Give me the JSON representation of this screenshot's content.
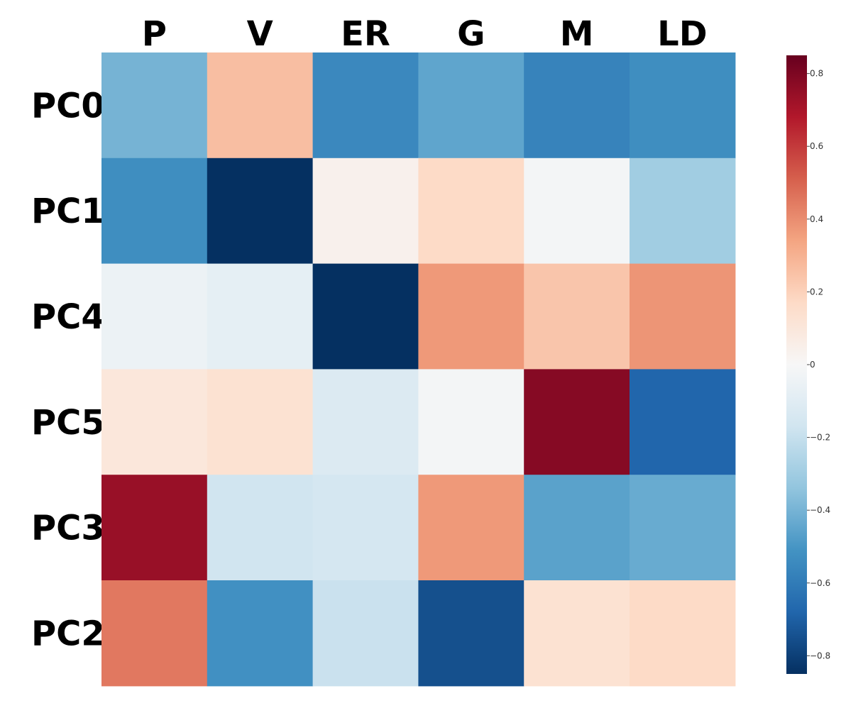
{
  "chart_data": {
    "type": "heatmap",
    "columns": [
      "P",
      "V",
      "ER",
      "G",
      "M",
      "LD"
    ],
    "rows": [
      "PC0",
      "PC1",
      "PC4",
      "PC5",
      "PC3",
      "PC2"
    ],
    "values": [
      [
        -0.4,
        0.26,
        -0.55,
        -0.45,
        -0.57,
        -0.53
      ],
      [
        -0.53,
        -0.85,
        0.04,
        0.17,
        -0.02,
        -0.3
      ],
      [
        -0.05,
        -0.08,
        -0.85,
        0.37,
        0.24,
        0.38
      ],
      [
        0.1,
        0.13,
        -0.12,
        -0.02,
        0.78,
        -0.68
      ],
      [
        0.74,
        -0.17,
        -0.15,
        0.37,
        -0.46,
        -0.43
      ],
      [
        0.45,
        -0.52,
        -0.19,
        -0.75,
        0.13,
        0.17
      ]
    ],
    "zmin": -0.85,
    "zmax": 0.85,
    "colorscale": "RdBu",
    "colorbar_ticks": [
      0.8,
      0.6,
      0.4,
      0.2,
      0,
      -0.2,
      -0.4,
      -0.6,
      -0.8
    ],
    "colorbar_tick_labels": [
      "0.8",
      "0.6",
      "0.4",
      "0.2",
      "0",
      "−0.2",
      "−0.4",
      "−0.6",
      "−0.8"
    ]
  }
}
